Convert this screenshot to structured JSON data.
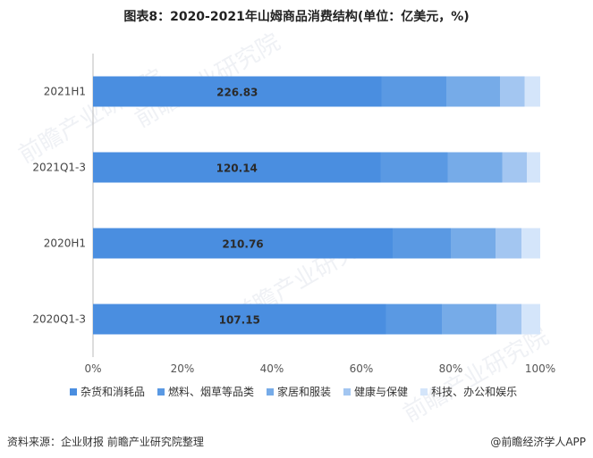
{
  "title": "图表8：2020-2021年山姆商品消费结构(单位：亿美元，%)",
  "watermark": "前瞻产业研究院",
  "footer": {
    "source": "资料来源：企业财报 前瞻产业研究院整理",
    "brand": "@前瞻经济学人APP"
  },
  "colors": {
    "series": [
      "#4a8ee0",
      "#5a99e3",
      "#76abe8",
      "#a3c6f1",
      "#d4e5fa"
    ]
  },
  "chart_data": {
    "type": "bar",
    "orientation": "horizontal",
    "stacked": "percent",
    "categories": [
      "2021H1",
      "2021Q1-3",
      "2020H1",
      "2020Q1-3"
    ],
    "xlim": [
      0,
      100
    ],
    "xticks": [
      "0%",
      "20%",
      "40%",
      "60%",
      "80%",
      "100%"
    ],
    "grid": false,
    "legend_position": "bottom",
    "series": [
      {
        "name": "杂货和消耗品",
        "values": [
          64.5,
          64.3,
          67,
          65.5
        ],
        "labels": [
          "226.83",
          "120.14",
          "210.76",
          "107.15"
        ]
      },
      {
        "name": "燃料、烟草等品类",
        "values": [
          14.5,
          15,
          13,
          12.5
        ],
        "labels": []
      },
      {
        "name": "家居和服装",
        "values": [
          12,
          12.2,
          10,
          12.2
        ],
        "labels": []
      },
      {
        "name": "健康与保健",
        "values": [
          5.5,
          5.5,
          5.8,
          5.6
        ],
        "labels": []
      },
      {
        "name": "科技、办公和娱乐",
        "values": [
          3.5,
          3,
          4.2,
          4.2
        ],
        "labels": []
      }
    ]
  }
}
